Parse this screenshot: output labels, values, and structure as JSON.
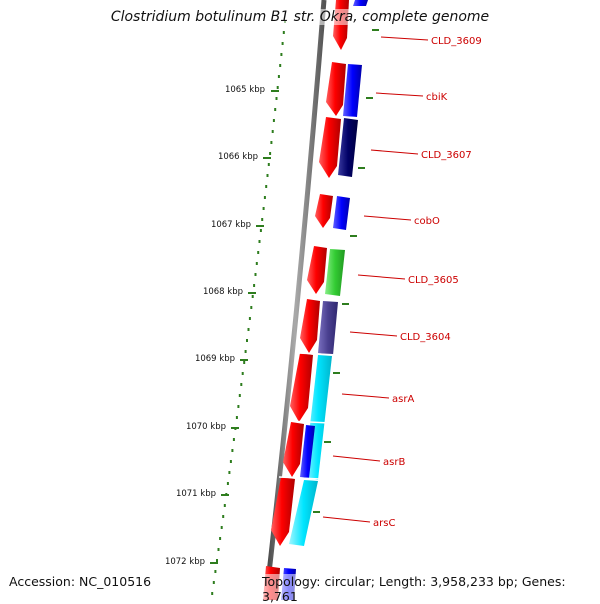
{
  "title": "Clostridium botulinum B1 str. Okra, complete genome",
  "footer": {
    "accession": "Accession: NC_010516",
    "summary": "Topology: circular; Length: 3,958,233 bp; Genes: 3,761"
  },
  "colors": {
    "backbone": "#777777",
    "scale_marks": "#2e7d1e",
    "cds_forward": "#ff0000",
    "label_text": "#cc0000",
    "cog_blue": "#0000ff",
    "cog_navy": "#000066",
    "cog_green": "#33cc33",
    "cog_slate": "#4a4090",
    "cog_cyan": "#00e5ff"
  },
  "scale_labels": [
    "1065 kbp",
    "1066 kbp",
    "1067 kbp",
    "1068 kbp",
    "1069 kbp",
    "1070 kbp",
    "1071 kbp",
    "1072 kbp"
  ],
  "genes": [
    {
      "label": "CLD_3609"
    },
    {
      "label": "cbiK"
    },
    {
      "label": "CLD_3607"
    },
    {
      "label": "cobO"
    },
    {
      "label": "CLD_3605"
    },
    {
      "label": "CLD_3604"
    },
    {
      "label": "asrA"
    },
    {
      "label": "asrB"
    },
    {
      "label": "arsC"
    }
  ]
}
